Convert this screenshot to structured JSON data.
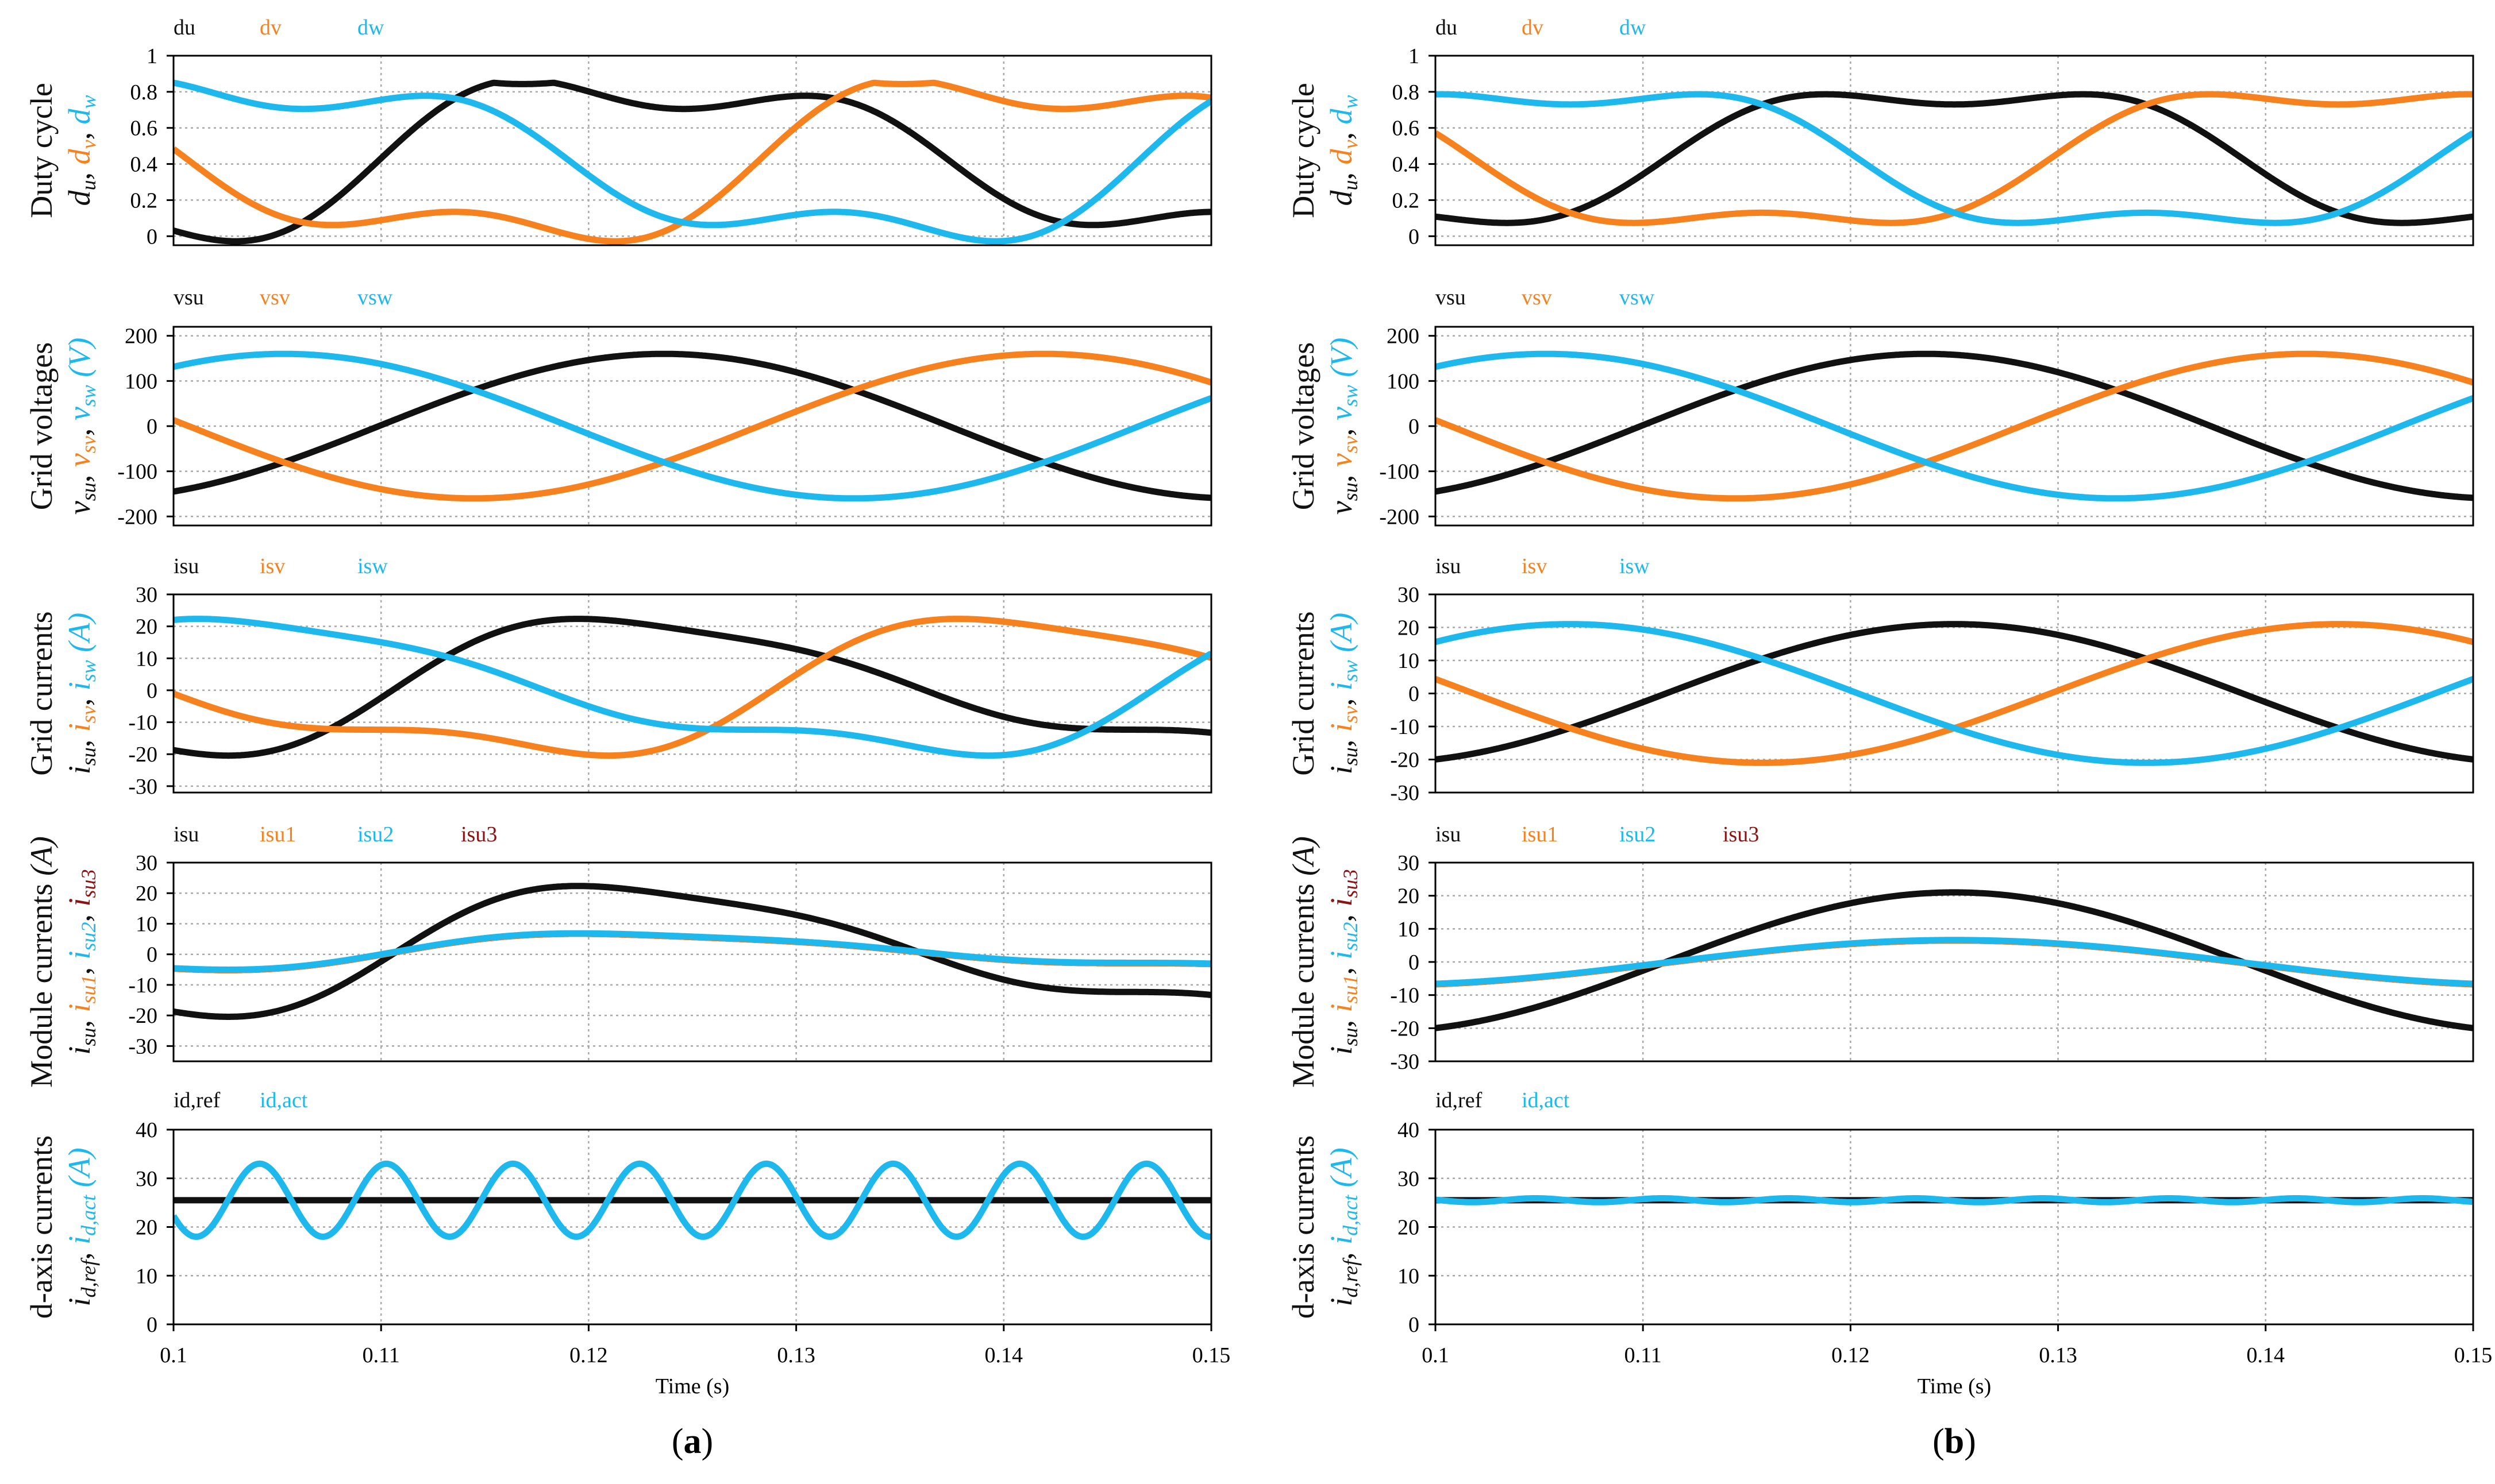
{
  "colors": {
    "black": "#111111",
    "orange": "#f5821f",
    "blue": "#1eb8ec",
    "darkred": "#8b1212",
    "grid": "#a8a8a8"
  },
  "x_axis": {
    "xlabel": "Time (s)",
    "ticks": [
      0.1,
      0.11,
      0.12,
      0.13,
      0.14,
      0.15
    ],
    "tick_labels": [
      "0.1",
      "0.11",
      "0.12",
      "0.13",
      "0.14",
      "0.15"
    ],
    "xlim": [
      0.1,
      0.15
    ]
  },
  "captions": [
    "(a)",
    "(b)"
  ],
  "chart_data": [
    {
      "panel": "a",
      "row": 0,
      "type": "line",
      "ylabel": [
        [
          [
            "Duty cycle",
            "n",
            "k"
          ]
        ],
        [
          [
            "d",
            "i",
            "k"
          ],
          [
            "u",
            "si",
            "k"
          ],
          [
            ", ",
            "n",
            "k"
          ],
          [
            "d",
            "i",
            "o"
          ],
          [
            "v",
            "si",
            "o"
          ],
          [
            ", ",
            "n",
            "k"
          ],
          [
            "d",
            "i",
            "b"
          ],
          [
            "w",
            "si",
            "b"
          ]
        ]
      ],
      "ylim": [
        -0.05,
        1
      ],
      "yticks": [
        0,
        0.2,
        0.4,
        0.6,
        0.8,
        1
      ],
      "ytick_labels": [
        "0",
        "0.2",
        "0.4",
        "0.6",
        "0.8",
        "1"
      ],
      "legend": [
        {
          "name": "du",
          "color": "black"
        },
        {
          "name": "dv",
          "color": "orange"
        },
        {
          "name": "dw",
          "color": "blue"
        }
      ],
      "model": {
        "kind": "duty_dist",
        "f": 18.2,
        "c": 0.42,
        "a": 0.43,
        "h": 0.14,
        "d2": 0.25,
        "clip": 0.85
      }
    },
    {
      "panel": "a",
      "row": 1,
      "type": "line",
      "ylabel": [
        [
          [
            "Grid voltages",
            "n",
            "k"
          ]
        ],
        [
          [
            "v",
            "i",
            "k"
          ],
          [
            "su",
            "si",
            "k"
          ],
          [
            ", ",
            "n",
            "k"
          ],
          [
            "v",
            "i",
            "o"
          ],
          [
            "sv",
            "si",
            "o"
          ],
          [
            ", ",
            "n",
            "k"
          ],
          [
            "v",
            "i",
            "b"
          ],
          [
            "sw",
            "si",
            "b"
          ],
          [
            " (V)",
            "i",
            "b"
          ]
        ]
      ],
      "ylim": [
        -220,
        220
      ],
      "yticks": [
        -200,
        -100,
        0,
        100,
        200
      ],
      "ytick_labels": [
        "-200",
        "-100",
        "0",
        "100",
        "200"
      ],
      "legend": [
        {
          "name": "vsu",
          "color": "black"
        },
        {
          "name": "vsv",
          "color": "orange"
        },
        {
          "name": "vsw",
          "color": "blue"
        }
      ],
      "model": {
        "kind": "sine3",
        "f": 18.2,
        "amp": 160
      }
    },
    {
      "panel": "a",
      "row": 2,
      "type": "line",
      "ylabel": [
        [
          [
            "Grid currents",
            "n",
            "k"
          ]
        ],
        [
          [
            "i",
            "i",
            "k"
          ],
          [
            "su",
            "si",
            "k"
          ],
          [
            ", ",
            "n",
            "k"
          ],
          [
            "i",
            "i",
            "o"
          ],
          [
            "sv",
            "si",
            "o"
          ],
          [
            ", ",
            "n",
            "k"
          ],
          [
            "i",
            "i",
            "b"
          ],
          [
            "sw",
            "si",
            "b"
          ],
          [
            " (A)",
            "i",
            "b"
          ]
        ]
      ],
      "ylim": [
        -32,
        30
      ],
      "yticks": [
        -30,
        -20,
        -10,
        0,
        10,
        20,
        30
      ],
      "ytick_labels": [
        "-30",
        "-20",
        "-10",
        "0",
        "10",
        "20",
        "30"
      ],
      "legend": [
        {
          "name": "isu",
          "color": "black"
        },
        {
          "name": "isv",
          "color": "orange"
        },
        {
          "name": "isw",
          "color": "blue"
        }
      ],
      "model": {
        "kind": "cur_dist",
        "f": 18.2,
        "amp": 20,
        "d2": 0.25,
        "d3": 0.15,
        "s": 5
      }
    },
    {
      "panel": "a",
      "row": 3,
      "type": "line",
      "ylabel": [
        [
          [
            "Module currents",
            "n",
            "k"
          ],
          [
            " (A)",
            "i",
            "k"
          ]
        ],
        [
          [
            "i",
            "i",
            "k"
          ],
          [
            "su",
            "si",
            "k"
          ],
          [
            ", ",
            "n",
            "k"
          ],
          [
            "i",
            "i",
            "o"
          ],
          [
            "su1",
            "si",
            "o"
          ],
          [
            ", ",
            "n",
            "k"
          ],
          [
            "i",
            "i",
            "b"
          ],
          [
            "su2",
            "si",
            "b"
          ],
          [
            ", ",
            "n",
            "k"
          ],
          [
            "i",
            "i",
            "r"
          ],
          [
            "su3",
            "si",
            "r"
          ]
        ]
      ],
      "ylim": [
        -35,
        30
      ],
      "yticks": [
        -30,
        -20,
        -10,
        0,
        10,
        20,
        30
      ],
      "ytick_labels": [
        "-30",
        "-20",
        "-10",
        "0",
        "10",
        "20",
        "30"
      ],
      "legend": [
        {
          "name": "isu",
          "color": "black"
        },
        {
          "name": "isu1",
          "color": "orange"
        },
        {
          "name": "isu2",
          "color": "blue"
        },
        {
          "name": "isu3",
          "color": "darkred"
        }
      ],
      "model": {
        "kind": "module",
        "f": 18.2,
        "amp": 20,
        "d2": 0.25,
        "d3": 0.15,
        "s": 5
      }
    },
    {
      "panel": "a",
      "row": 4,
      "type": "line",
      "ylabel": [
        [
          [
            "d-axis currents",
            "n",
            "k"
          ]
        ],
        [
          [
            "i",
            "i",
            "k"
          ],
          [
            "d,ref",
            "si",
            "k"
          ],
          [
            ", ",
            "n",
            "k"
          ],
          [
            "i",
            "i",
            "b"
          ],
          [
            "d,act",
            "si",
            "b"
          ],
          [
            " (A)",
            "i",
            "b"
          ]
        ]
      ],
      "ylim": [
        0,
        40
      ],
      "yticks": [
        0,
        10,
        20,
        30,
        40
      ],
      "ytick_labels": [
        "0",
        "10",
        "20",
        "30",
        "40"
      ],
      "legend": [
        {
          "name": "id,ref",
          "color": "black"
        },
        {
          "name": "id,act",
          "color": "blue"
        }
      ],
      "model": {
        "kind": "dq",
        "ref": 25.5,
        "ripple": 7.5,
        "f": 163.8,
        "phase": 1.2
      }
    },
    {
      "panel": "b",
      "row": 0,
      "type": "line",
      "ylabel": [
        [
          [
            "Duty cycle",
            "n",
            "k"
          ]
        ],
        [
          [
            "d",
            "i",
            "k"
          ],
          [
            "u",
            "si",
            "k"
          ],
          [
            ", ",
            "n",
            "k"
          ],
          [
            "d",
            "i",
            "o"
          ],
          [
            "v",
            "si",
            "o"
          ],
          [
            ", ",
            "n",
            "k"
          ],
          [
            "d",
            "i",
            "b"
          ],
          [
            "w",
            "si",
            "b"
          ]
        ]
      ],
      "ylim": [
        -0.05,
        1
      ],
      "yticks": [
        0,
        0.2,
        0.4,
        0.6,
        0.8,
        1
      ],
      "ytick_labels": [
        "0",
        "0.2",
        "0.4",
        "0.6",
        "0.8",
        "1"
      ],
      "legend": [
        {
          "name": "du",
          "color": "black"
        },
        {
          "name": "dv",
          "color": "orange"
        },
        {
          "name": "dw",
          "color": "blue"
        }
      ],
      "model": {
        "kind": "duty_clean",
        "f": 18.0,
        "c": 0.43,
        "a": 0.4,
        "h": 0.1
      }
    },
    {
      "panel": "b",
      "row": 1,
      "type": "line",
      "ylabel": [
        [
          [
            "Grid voltages",
            "n",
            "k"
          ]
        ],
        [
          [
            "v",
            "i",
            "k"
          ],
          [
            "su",
            "si",
            "k"
          ],
          [
            ", ",
            "n",
            "k"
          ],
          [
            "v",
            "i",
            "o"
          ],
          [
            "sv",
            "si",
            "o"
          ],
          [
            ", ",
            "n",
            "k"
          ],
          [
            "v",
            "i",
            "b"
          ],
          [
            "sw",
            "si",
            "b"
          ],
          [
            " (V)",
            "i",
            "b"
          ]
        ]
      ],
      "ylim": [
        -220,
        220
      ],
      "yticks": [
        -200,
        -100,
        0,
        100,
        200
      ],
      "ytick_labels": [
        "-200",
        "-100",
        "0",
        "100",
        "200"
      ],
      "legend": [
        {
          "name": "vsu",
          "color": "black"
        },
        {
          "name": "vsv",
          "color": "orange"
        },
        {
          "name": "vsw",
          "color": "blue"
        }
      ],
      "model": {
        "kind": "sine3",
        "f": 18.2,
        "amp": 160
      }
    },
    {
      "panel": "b",
      "row": 2,
      "type": "line",
      "ylabel": [
        [
          [
            "Grid currents",
            "n",
            "k"
          ]
        ],
        [
          [
            "i",
            "i",
            "k"
          ],
          [
            "su",
            "si",
            "k"
          ],
          [
            ", ",
            "n",
            "k"
          ],
          [
            "i",
            "i",
            "o"
          ],
          [
            "sv",
            "si",
            "o"
          ],
          [
            ", ",
            "n",
            "k"
          ],
          [
            "i",
            "i",
            "b"
          ],
          [
            "sw",
            "si",
            "b"
          ],
          [
            " (A)",
            "i",
            "b"
          ]
        ]
      ],
      "ylim": [
        -30,
        30
      ],
      "yticks": [
        -30,
        -20,
        -10,
        0,
        10,
        20,
        30
      ],
      "ytick_labels": [
        "-30",
        "-20",
        "-10",
        "0",
        "10",
        "20",
        "30"
      ],
      "legend": [
        {
          "name": "isu",
          "color": "black"
        },
        {
          "name": "isv",
          "color": "orange"
        },
        {
          "name": "isw",
          "color": "blue"
        }
      ],
      "model": {
        "kind": "sine3",
        "f": 18.0,
        "amp": 21
      }
    },
    {
      "panel": "b",
      "row": 3,
      "type": "line",
      "ylabel": [
        [
          [
            "Module currents",
            "n",
            "k"
          ],
          [
            " (A)",
            "i",
            "k"
          ]
        ],
        [
          [
            "i",
            "i",
            "k"
          ],
          [
            "su",
            "si",
            "k"
          ],
          [
            ", ",
            "n",
            "k"
          ],
          [
            "i",
            "i",
            "o"
          ],
          [
            "su1",
            "si",
            "o"
          ],
          [
            ", ",
            "n",
            "k"
          ],
          [
            "i",
            "i",
            "b"
          ],
          [
            "su2",
            "si",
            "b"
          ],
          [
            ", ",
            "n",
            "k"
          ],
          [
            "i",
            "i",
            "r"
          ],
          [
            "su3",
            "si",
            "r"
          ]
        ]
      ],
      "ylim": [
        -30,
        30
      ],
      "yticks": [
        -30,
        -20,
        -10,
        0,
        10,
        20,
        30
      ],
      "ytick_labels": [
        "-30",
        "-20",
        "-10",
        "0",
        "10",
        "20",
        "30"
      ],
      "legend": [
        {
          "name": "isu",
          "color": "black"
        },
        {
          "name": "isu1",
          "color": "orange"
        },
        {
          "name": "isu2",
          "color": "blue"
        },
        {
          "name": "isu3",
          "color": "darkred"
        }
      ],
      "model": {
        "kind": "module_clean",
        "f": 18.0,
        "amp": 21
      }
    },
    {
      "panel": "b",
      "row": 4,
      "type": "line",
      "ylabel": [
        [
          [
            "d-axis currents",
            "n",
            "k"
          ]
        ],
        [
          [
            "i",
            "i",
            "k"
          ],
          [
            "d,ref",
            "si",
            "k"
          ],
          [
            ", ",
            "n",
            "k"
          ],
          [
            "i",
            "i",
            "b"
          ],
          [
            "d,act",
            "si",
            "b"
          ],
          [
            " (A)",
            "i",
            "b"
          ]
        ]
      ],
      "ylim": [
        0,
        40
      ],
      "yticks": [
        0,
        10,
        20,
        30,
        40
      ],
      "ytick_labels": [
        "0",
        "10",
        "20",
        "30",
        "40"
      ],
      "legend": [
        {
          "name": "id,ref",
          "color": "black"
        },
        {
          "name": "id,act",
          "color": "blue"
        }
      ],
      "model": {
        "kind": "dq",
        "ref": 25.5,
        "ripple": 0.4,
        "f": 163.8,
        "phase": 0.5
      }
    }
  ]
}
